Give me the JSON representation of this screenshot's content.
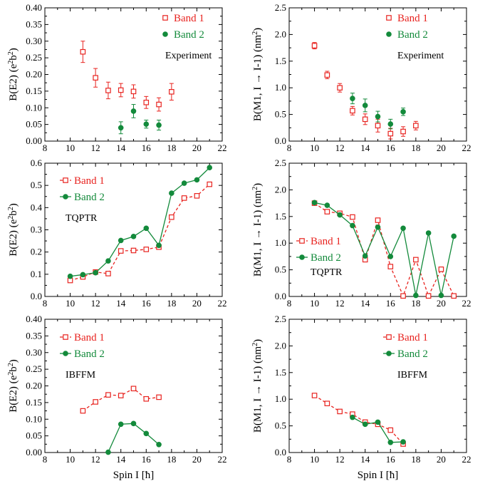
{
  "colors": {
    "band1": "#e8231f",
    "band2": "#138a3b",
    "axis": "#000000"
  },
  "shared_x_label": "Spin I [ħ]",
  "chart_data": [
    {
      "type": "scatter",
      "row": 0,
      "col": 0,
      "tag": "Experiment",
      "ylabel": "B(E2) (e²b²)",
      "xlabel": "",
      "xlim": [
        8,
        22
      ],
      "ylim": [
        0,
        0.4
      ],
      "xticks": [
        8,
        10,
        12,
        14,
        16,
        18,
        20,
        22
      ],
      "yticks": [
        0.0,
        0.05,
        0.1,
        0.15,
        0.2,
        0.25,
        0.3,
        0.35,
        0.4
      ],
      "ytick_decimals": 2,
      "legend": [
        "Band 1",
        "Band 2"
      ],
      "lines": false,
      "errorbars": true,
      "series": [
        {
          "name": "Band 1",
          "x": [
            11,
            12,
            13,
            14,
            15,
            16,
            17,
            18
          ],
          "y": [
            0.268,
            0.19,
            0.152,
            0.153,
            0.149,
            0.116,
            0.11,
            0.148
          ],
          "err": [
            0.032,
            0.028,
            0.025,
            0.02,
            0.02,
            0.018,
            0.02,
            0.025
          ]
        },
        {
          "name": "Band 2",
          "x": [
            14,
            15,
            16,
            17
          ],
          "y": [
            0.04,
            0.09,
            0.051,
            0.048
          ],
          "err": [
            0.018,
            0.02,
            0.012,
            0.015
          ]
        }
      ]
    },
    {
      "type": "scatter",
      "row": 0,
      "col": 1,
      "tag": "Experiment",
      "ylabel": "B(M1, I → I-1) (nm²)",
      "xlabel": "",
      "xlim": [
        8,
        22
      ],
      "ylim": [
        0,
        2.5
      ],
      "xticks": [
        8,
        10,
        12,
        14,
        16,
        18,
        20,
        22
      ],
      "yticks": [
        0.0,
        0.5,
        1.0,
        1.5,
        2.0,
        2.5
      ],
      "ytick_decimals": 1,
      "legend": [
        "Band 1",
        "Band 2"
      ],
      "lines": false,
      "errorbars": true,
      "series": [
        {
          "name": "Band 1",
          "x": [
            10,
            11,
            12,
            13,
            14,
            15,
            16,
            17,
            18
          ],
          "y": [
            1.79,
            1.24,
            1.0,
            0.57,
            0.41,
            0.29,
            0.14,
            0.18,
            0.29
          ],
          "err": [
            0.06,
            0.07,
            0.08,
            0.08,
            0.1,
            0.12,
            0.1,
            0.09,
            0.08
          ]
        },
        {
          "name": "Band 2",
          "x": [
            13,
            14,
            15,
            16,
            17
          ],
          "y": [
            0.8,
            0.67,
            0.46,
            0.32,
            0.55
          ],
          "err": [
            0.1,
            0.12,
            0.1,
            0.09,
            0.07
          ]
        }
      ]
    },
    {
      "type": "line",
      "row": 1,
      "col": 0,
      "tag": "TQPTR",
      "ylabel": "B(E2) (e²b²)",
      "xlabel": "",
      "xlim": [
        8,
        22
      ],
      "ylim": [
        0,
        0.6
      ],
      "xticks": [
        8,
        10,
        12,
        14,
        16,
        18,
        20,
        22
      ],
      "yticks": [
        0.0,
        0.1,
        0.2,
        0.3,
        0.4,
        0.5,
        0.6
      ],
      "ytick_decimals": 1,
      "legend": [
        "Band 1",
        "Band 2"
      ],
      "lines": true,
      "errorbars": false,
      "series": [
        {
          "name": "Band 1",
          "x": [
            10,
            11,
            12,
            13,
            14,
            15,
            16,
            17,
            18,
            19,
            20,
            21
          ],
          "y": [
            0.072,
            0.088,
            0.11,
            0.103,
            0.205,
            0.207,
            0.212,
            0.222,
            0.357,
            0.443,
            0.453,
            0.505
          ]
        },
        {
          "name": "Band 2",
          "x": [
            10,
            11,
            12,
            13,
            14,
            15,
            16,
            17,
            18,
            19,
            20,
            21
          ],
          "y": [
            0.091,
            0.098,
            0.107,
            0.16,
            0.252,
            0.27,
            0.307,
            0.23,
            0.465,
            0.51,
            0.525,
            0.58
          ]
        }
      ]
    },
    {
      "type": "line",
      "row": 1,
      "col": 1,
      "tag": "TQPTR",
      "ylabel": "B(M1, I → I-1) (nm²)",
      "xlabel": "",
      "xlim": [
        8,
        22
      ],
      "ylim": [
        0,
        2.5
      ],
      "xticks": [
        8,
        10,
        12,
        14,
        16,
        18,
        20,
        22
      ],
      "yticks": [
        0.0,
        0.5,
        1.0,
        1.5,
        2.0,
        2.5
      ],
      "ytick_decimals": 1,
      "legend": [
        "Band 1",
        "Band 2"
      ],
      "lines": true,
      "errorbars": false,
      "series": [
        {
          "name": "Band 1",
          "x": [
            10,
            11,
            12,
            13,
            14,
            15,
            16,
            17,
            18,
            19,
            20,
            21
          ],
          "y": [
            1.75,
            1.59,
            1.56,
            1.49,
            0.69,
            1.43,
            0.56,
            0.01,
            0.69,
            0.01,
            0.51,
            0.01
          ]
        },
        {
          "name": "Band 2",
          "x": [
            10,
            11,
            12,
            13,
            14,
            15,
            16,
            17,
            18,
            19,
            20,
            21
          ],
          "y": [
            1.76,
            1.71,
            1.53,
            1.33,
            0.76,
            1.3,
            0.75,
            1.28,
            0.02,
            1.19,
            0.02,
            1.13
          ]
        }
      ]
    },
    {
      "type": "line",
      "row": 2,
      "col": 0,
      "tag": "IBFFM",
      "ylabel": "B(E2) (e²b²)",
      "xlabel": "Spin I [ħ]",
      "xlim": [
        8,
        22
      ],
      "ylim": [
        0,
        0.4
      ],
      "xticks": [
        8,
        10,
        12,
        14,
        16,
        18,
        20,
        22
      ],
      "yticks": [
        0.0,
        0.05,
        0.1,
        0.15,
        0.2,
        0.25,
        0.3,
        0.35,
        0.4
      ],
      "ytick_decimals": 2,
      "legend": [
        "Band 1",
        "Band 2"
      ],
      "lines": true,
      "errorbars": false,
      "series": [
        {
          "name": "Band 1",
          "x": [
            11,
            12,
            13,
            14,
            15,
            16,
            17
          ],
          "y": [
            0.125,
            0.152,
            0.173,
            0.171,
            0.192,
            0.161,
            0.166
          ]
        },
        {
          "name": "Band 2",
          "x": [
            13,
            14,
            15,
            16,
            17
          ],
          "y": [
            0.001,
            0.085,
            0.087,
            0.057,
            0.024
          ]
        }
      ]
    },
    {
      "type": "line",
      "row": 2,
      "col": 1,
      "tag": "IBFFM",
      "ylabel": "B(M1, I → I-1) (nm²)",
      "xlabel": "Spin I [ħ]",
      "xlim": [
        8,
        22
      ],
      "ylim": [
        0,
        2.5
      ],
      "xticks": [
        8,
        10,
        12,
        14,
        16,
        18,
        20,
        22
      ],
      "yticks": [
        0.0,
        0.5,
        1.0,
        1.5,
        2.0,
        2.5
      ],
      "ytick_decimals": 1,
      "legend": [
        "Band 1",
        "Band 2"
      ],
      "lines": true,
      "errorbars": false,
      "series": [
        {
          "name": "Band 1",
          "x": [
            10,
            11,
            12,
            13,
            14,
            15,
            16,
            17
          ],
          "y": [
            1.07,
            0.92,
            0.77,
            0.72,
            0.57,
            0.53,
            0.42,
            0.16
          ]
        },
        {
          "name": "Band 2",
          "x": [
            13,
            14,
            15,
            16,
            17
          ],
          "y": [
            0.66,
            0.53,
            0.57,
            0.19,
            0.2
          ]
        }
      ]
    }
  ]
}
